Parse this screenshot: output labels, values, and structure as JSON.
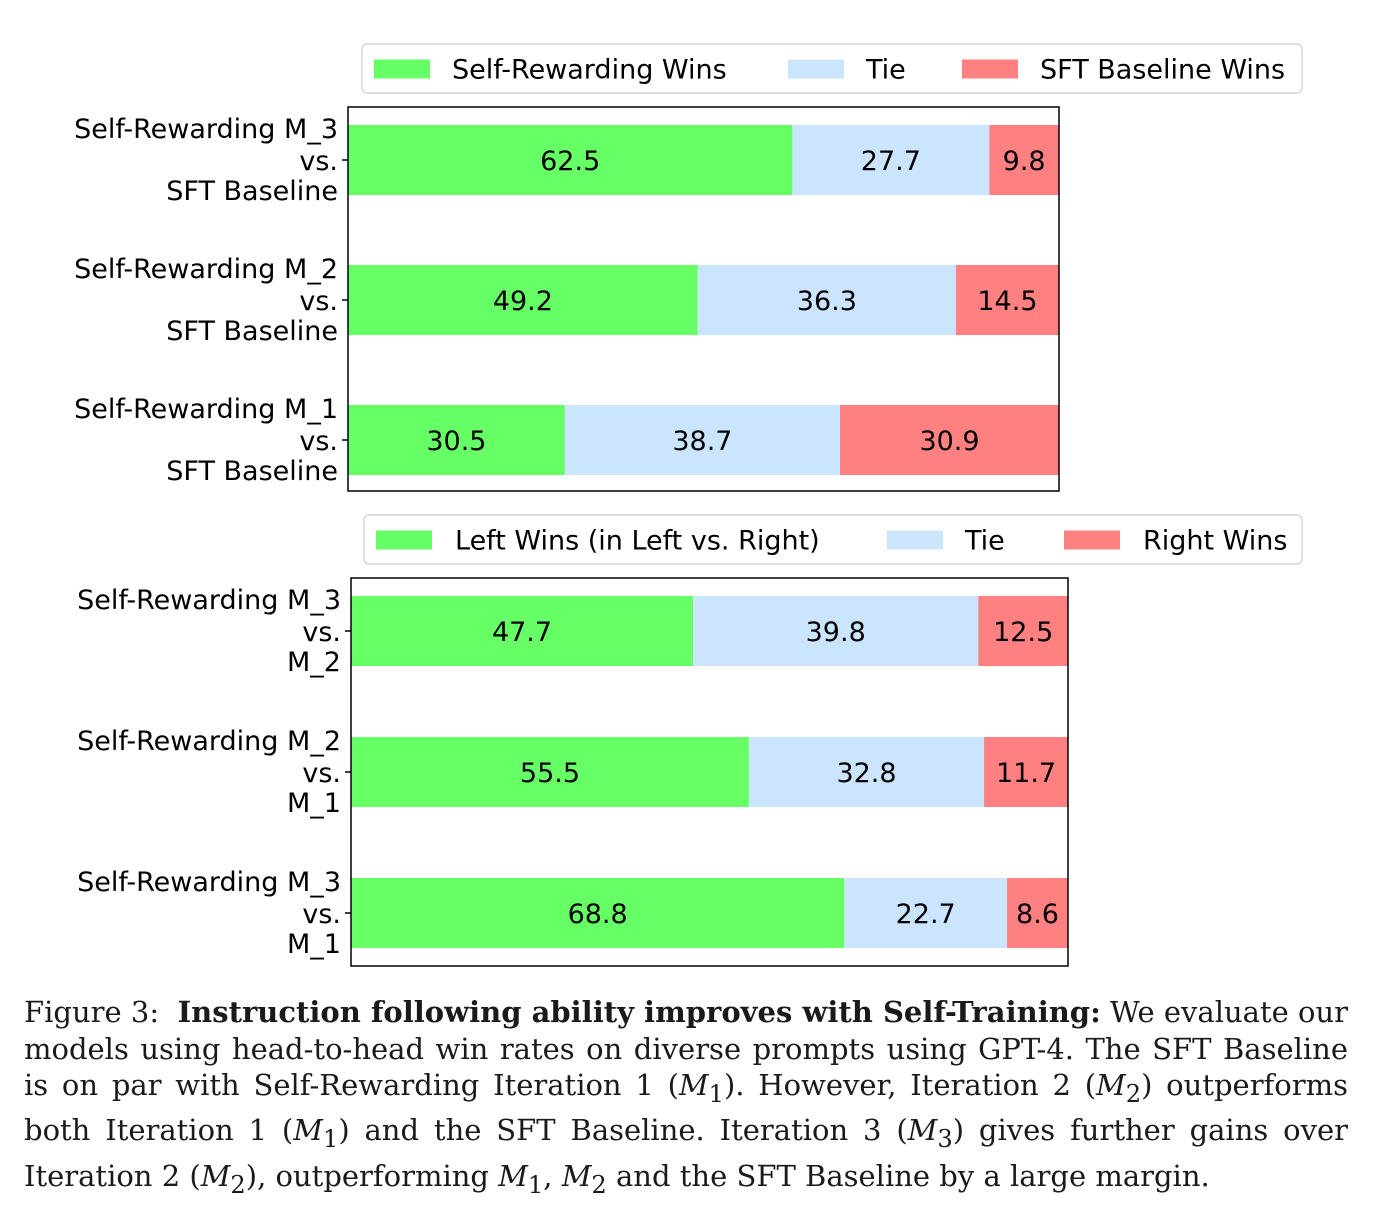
{
  "chart_data": [
    {
      "type": "bar",
      "orientation": "horizontal",
      "stacked": true,
      "xlim": [
        0,
        100
      ],
      "legend": {
        "placement": "top",
        "entries": [
          "Self-Rewarding Wins",
          "Tie",
          "SFT Baseline Wins"
        ]
      },
      "categories": [
        [
          "Self-Rewarding M_3",
          "vs.",
          "SFT Baseline"
        ],
        [
          "Self-Rewarding M_2",
          "vs.",
          "SFT Baseline"
        ],
        [
          "Self-Rewarding M_1",
          "vs.",
          "SFT Baseline"
        ]
      ],
      "series": [
        {
          "name": "Self-Rewarding Wins",
          "color": "#66ff66",
          "values": [
            62.5,
            49.2,
            30.5
          ]
        },
        {
          "name": "Tie",
          "color": "#cce5ff",
          "values": [
            27.7,
            36.3,
            38.7
          ]
        },
        {
          "name": "SFT Baseline Wins",
          "color": "#ff8080",
          "values": [
            9.8,
            14.5,
            30.9
          ]
        }
      ]
    },
    {
      "type": "bar",
      "orientation": "horizontal",
      "stacked": true,
      "xlim": [
        0,
        100
      ],
      "legend": {
        "placement": "top",
        "entries": [
          "Left Wins (in Left vs. Right)",
          "Tie",
          "Right Wins"
        ]
      },
      "categories": [
        [
          "Self-Rewarding M_3",
          "vs.",
          "M_2"
        ],
        [
          "Self-Rewarding M_2",
          "vs.",
          "M_1"
        ],
        [
          "Self-Rewarding M_3",
          "vs.",
          "M_1"
        ]
      ],
      "series": [
        {
          "name": "Left Wins (in Left vs. Right)",
          "color": "#66ff66",
          "values": [
            47.7,
            55.5,
            68.8
          ]
        },
        {
          "name": "Tie",
          "color": "#cce5ff",
          "values": [
            39.8,
            32.8,
            22.7
          ]
        },
        {
          "name": "Right Wins",
          "color": "#ff8080",
          "values": [
            12.5,
            11.7,
            8.6
          ]
        }
      ]
    }
  ],
  "caption": {
    "label": "Figure 3:",
    "bold": "Instruction following ability improves with Self-Training:",
    "s1": "We evaluate our models using head-to-head win rates on diverse prompts using GPT-4. The SFT Baseline is on par with Self-Rewarding Iteration 1 (",
    "m1a": "M",
    "sub1a": "1",
    "s2": "). However, Iteration 2 (",
    "m2a": "M",
    "sub2a": "2",
    "s3": ") outperforms both Iteration 1 (",
    "m1b": "M",
    "sub1b": "1",
    "s4": ") and the SFT Baseline. Iteration 3 (",
    "m3a": "M",
    "sub3a": "3",
    "s5": ") gives further gains over Iteration 2 (",
    "m2b": "M",
    "sub2b": "2",
    "s6": "), outperforming ",
    "m1c": "M",
    "sub1c": "1",
    "s7": ", ",
    "m2c": "M",
    "sub2c": "2",
    "s8": " and the SFT Baseline by a large margin."
  }
}
